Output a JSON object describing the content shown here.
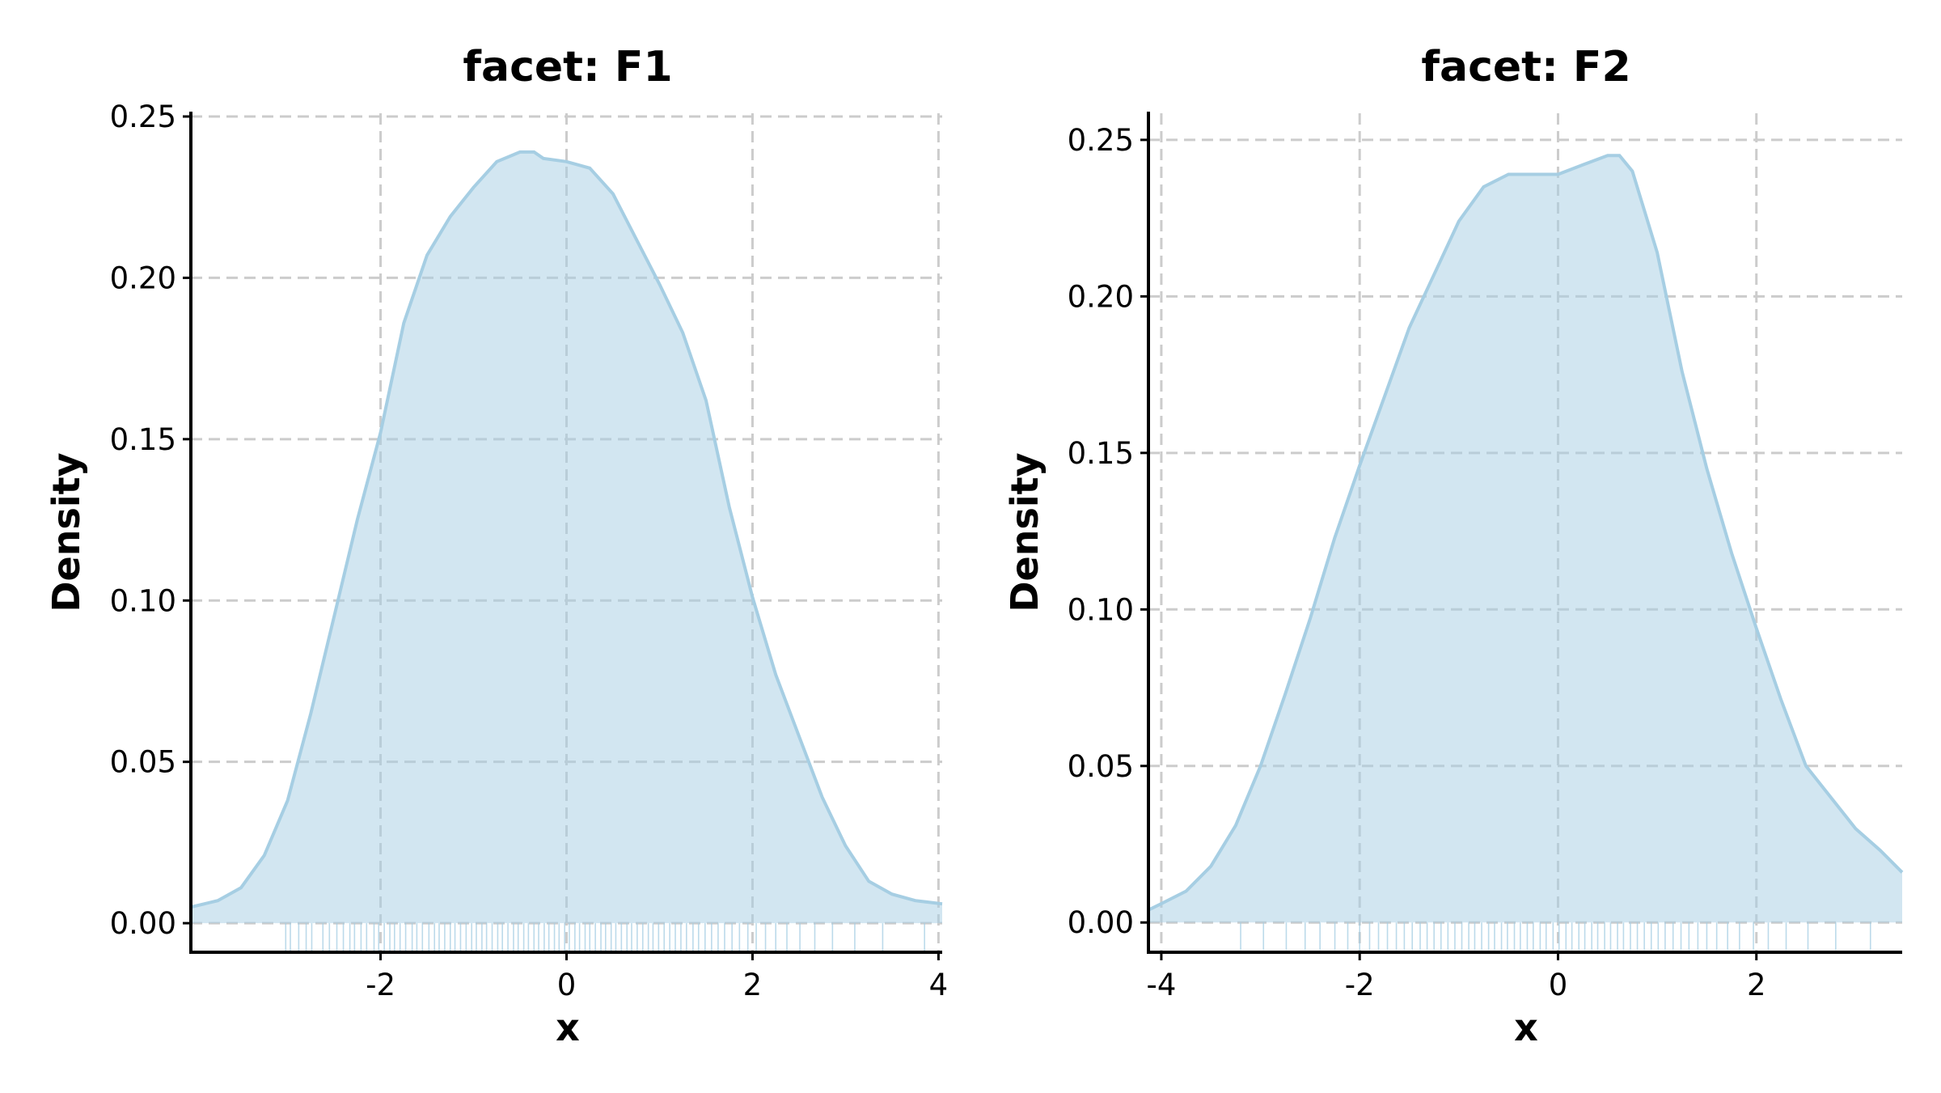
{
  "style": {
    "fill_color": "#a6cee3",
    "fill_opacity": 0.5,
    "line_color": "#a6cee3",
    "grid": true,
    "grid_style": "dashed"
  },
  "chart_data": [
    {
      "type": "area",
      "title": "facet: F1",
      "xlabel": "x",
      "ylabel": "Density",
      "xlim": [
        -4.04,
        4.04
      ],
      "ylim": [
        -0.009,
        0.251
      ],
      "xticks": [
        -2,
        0,
        2,
        4
      ],
      "xtick_labels": [
        "-2",
        "0",
        "2",
        "4"
      ],
      "yticks": [
        0.0,
        0.05,
        0.1,
        0.15,
        0.2,
        0.25
      ],
      "ytick_labels": [
        "0.00",
        "0.05",
        "0.10",
        "0.15",
        "0.20",
        "0.25"
      ],
      "series": [
        {
          "x": [
            -4.04,
            -3.75,
            -3.5,
            -3.25,
            -3.0,
            -2.75,
            -2.5,
            -2.25,
            -2.0,
            -1.75,
            -1.5,
            -1.25,
            -1.0,
            -0.75,
            -0.5,
            -0.35,
            -0.25,
            0.0,
            0.25,
            0.5,
            0.75,
            1.0,
            1.25,
            1.5,
            1.75,
            2.0,
            2.25,
            2.5,
            2.75,
            3.0,
            3.25,
            3.5,
            3.75,
            4.04
          ],
          "y": [
            0.005,
            0.007,
            0.011,
            0.021,
            0.038,
            0.065,
            0.095,
            0.125,
            0.152,
            0.186,
            0.207,
            0.219,
            0.228,
            0.236,
            0.239,
            0.239,
            0.237,
            0.236,
            0.234,
            0.226,
            0.212,
            0.198,
            0.183,
            0.162,
            0.129,
            0.101,
            0.077,
            0.058,
            0.039,
            0.024,
            0.013,
            0.009,
            0.007,
            0.006
          ]
        }
      ],
      "rug": [
        -3.02,
        -2.97,
        -2.88,
        -2.8,
        -2.74,
        -2.62,
        -2.55,
        -2.47,
        -2.4,
        -2.33,
        -2.28,
        -2.21,
        -2.15,
        -2.07,
        -2.02,
        -1.96,
        -1.9,
        -1.85,
        -1.79,
        -1.73,
        -1.66,
        -1.61,
        -1.55,
        -1.48,
        -1.42,
        -1.37,
        -1.31,
        -1.25,
        -1.2,
        -1.14,
        -1.08,
        -1.02,
        -0.97,
        -0.91,
        -0.86,
        -0.8,
        -0.74,
        -0.69,
        -0.63,
        -0.57,
        -0.52,
        -0.46,
        -0.41,
        -0.35,
        -0.3,
        -0.24,
        -0.19,
        -0.13,
        -0.08,
        -0.02,
        0.03,
        0.09,
        0.14,
        0.2,
        0.25,
        0.31,
        0.37,
        0.42,
        0.48,
        0.53,
        0.59,
        0.65,
        0.7,
        0.76,
        0.82,
        0.88,
        0.93,
        0.99,
        1.05,
        1.11,
        1.17,
        1.23,
        1.29,
        1.36,
        1.42,
        1.49,
        1.56,
        1.63,
        1.7,
        1.78,
        1.86,
        1.95,
        2.04,
        2.14,
        2.25,
        2.37,
        2.51,
        2.67,
        2.86,
        3.1,
        3.4,
        3.85
      ]
    },
    {
      "type": "area",
      "title": "facet: F2",
      "xlabel": "x",
      "ylabel": "Density",
      "xlim": [
        -4.13,
        3.47
      ],
      "ylim": [
        -0.0095,
        0.2585
      ],
      "xticks": [
        -4,
        -2,
        0,
        2
      ],
      "xtick_labels": [
        "-4",
        "-2",
        "0",
        "2"
      ],
      "yticks": [
        0.0,
        0.05,
        0.1,
        0.15,
        0.2,
        0.25
      ],
      "ytick_labels": [
        "0.00",
        "0.05",
        "0.10",
        "0.15",
        "0.20",
        "0.25"
      ],
      "series": [
        {
          "x": [
            -4.13,
            -4.0,
            -3.75,
            -3.5,
            -3.25,
            -3.0,
            -2.75,
            -2.5,
            -2.25,
            -2.0,
            -1.75,
            -1.5,
            -1.25,
            -1.0,
            -0.75,
            -0.5,
            -0.25,
            0.0,
            0.25,
            0.5,
            0.62,
            0.75,
            1.0,
            1.25,
            1.5,
            1.75,
            2.0,
            2.25,
            2.5,
            2.75,
            3.0,
            3.25,
            3.47
          ],
          "y": [
            0.004,
            0.006,
            0.01,
            0.018,
            0.031,
            0.05,
            0.073,
            0.097,
            0.123,
            0.146,
            0.168,
            0.19,
            0.207,
            0.224,
            0.235,
            0.239,
            0.239,
            0.239,
            0.242,
            0.245,
            0.245,
            0.24,
            0.214,
            0.176,
            0.145,
            0.118,
            0.094,
            0.071,
            0.05,
            0.04,
            0.03,
            0.023,
            0.016
          ]
        }
      ],
      "rug": [
        -3.2,
        -2.97,
        -2.74,
        -2.55,
        -2.4,
        -2.25,
        -2.12,
        -2.0,
        -1.9,
        -1.81,
        -1.72,
        -1.63,
        -1.55,
        -1.47,
        -1.39,
        -1.32,
        -1.25,
        -1.18,
        -1.11,
        -1.04,
        -0.97,
        -0.9,
        -0.84,
        -0.77,
        -0.7,
        -0.64,
        -0.57,
        -0.51,
        -0.44,
        -0.38,
        -0.31,
        -0.25,
        -0.18,
        -0.12,
        -0.05,
        0.01,
        0.08,
        0.14,
        0.21,
        0.27,
        0.34,
        0.4,
        0.47,
        0.53,
        0.6,
        0.66,
        0.73,
        0.8,
        0.87,
        0.94,
        1.01,
        1.08,
        1.16,
        1.24,
        1.32,
        1.41,
        1.5,
        1.6,
        1.71,
        1.83,
        1.97,
        2.12,
        2.3,
        2.52,
        2.8,
        3.15
      ]
    }
  ]
}
